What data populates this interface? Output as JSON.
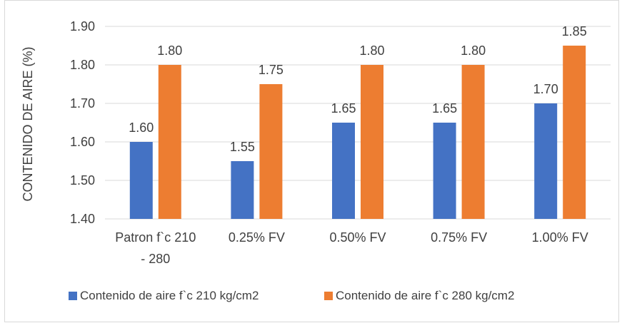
{
  "chart_data": {
    "type": "bar",
    "categories": [
      [
        "Patron f`c 210",
        "- 280"
      ],
      [
        "0.25% FV"
      ],
      [
        "0.50% FV"
      ],
      [
        "0.75% FV"
      ],
      [
        "1.00% FV"
      ]
    ],
    "series": [
      {
        "name": "Contenido de aire  f`c 210 kg/cm2",
        "color": "#4472c4",
        "values": [
          1.6,
          1.55,
          1.65,
          1.65,
          1.7
        ],
        "labels": [
          "1.60",
          "1.55",
          "1.65",
          "1.65",
          "1.70"
        ]
      },
      {
        "name": "Contenido de aire  f`c 280 kg/cm2",
        "color": "#ed7d31",
        "values": [
          1.8,
          1.75,
          1.8,
          1.8,
          1.85
        ],
        "labels": [
          "1.80",
          "1.75",
          "1.80",
          "1.80",
          "1.85"
        ]
      }
    ],
    "ylabel": "CONTENIDO DE AIRE (%)",
    "xlabel": "",
    "ylim": [
      1.4,
      1.9
    ],
    "yticks": [
      1.4,
      1.5,
      1.6,
      1.7,
      1.8,
      1.9
    ],
    "ytick_labels": [
      "1.40",
      "1.50",
      "1.60",
      "1.70",
      "1.80",
      "1.90"
    ],
    "grid": true,
    "legend_position": "bottom",
    "gridline_color": "#d9d9d9",
    "text_color": "#404040"
  }
}
